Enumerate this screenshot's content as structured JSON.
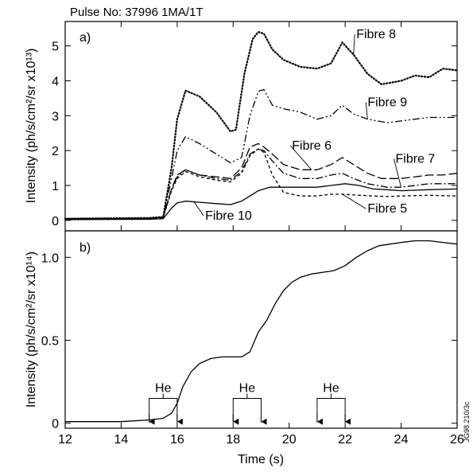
{
  "chart_data": [
    {
      "type": "line",
      "panel_label": "a)",
      "title": "Pulse No: 37996 1MA/1T",
      "ylabel": "Intensity (ph/s/cm²/sr x10¹³)",
      "xlabel": "",
      "xlim": [
        12,
        26
      ],
      "ylim": [
        -0.3,
        5.7
      ],
      "yticks": [
        "0",
        "1",
        "2",
        "3",
        "4",
        "5"
      ],
      "grid": false,
      "series": [
        {
          "name": "Fibre 8",
          "style": "dotted",
          "x": [
            12,
            15,
            15.5,
            15.8,
            16,
            16.3,
            16.8,
            17.4,
            17.9,
            18.1,
            18.4,
            18.7,
            18.9,
            19.1,
            19.4,
            19.8,
            20.4,
            21,
            21.5,
            21.9,
            22.3,
            22.8,
            23.3,
            24,
            24.5,
            25,
            25.5,
            26
          ],
          "y": [
            0.05,
            0.07,
            0.1,
            1.5,
            2.9,
            3.72,
            3.55,
            3.1,
            2.55,
            2.6,
            4.2,
            5.2,
            5.4,
            5.35,
            4.9,
            4.6,
            4.4,
            4.35,
            4.5,
            5.1,
            4.75,
            4.2,
            3.9,
            4.0,
            4.15,
            4.1,
            4.35,
            4.3
          ]
        },
        {
          "name": "Fibre 9",
          "style": "dash-dot-dot",
          "x": [
            12,
            15,
            15.5,
            15.8,
            16,
            16.3,
            16.8,
            17.4,
            17.9,
            18.3,
            18.6,
            18.9,
            19.1,
            19.4,
            19.8,
            20.4,
            21,
            21.5,
            21.9,
            22.3,
            22.8,
            23.5,
            24,
            24.5,
            25,
            25.5,
            26
          ],
          "y": [
            0.05,
            0.06,
            0.1,
            1.2,
            2.0,
            2.4,
            2.2,
            1.9,
            1.65,
            1.8,
            3.0,
            3.7,
            3.75,
            3.3,
            3.2,
            3.1,
            2.9,
            3.0,
            3.3,
            3.05,
            2.9,
            2.8,
            2.85,
            2.9,
            2.95,
            2.95,
            2.95
          ]
        },
        {
          "name": "Fibre 6",
          "style": "long-dash",
          "x": [
            12,
            15,
            15.5,
            15.8,
            16,
            16.3,
            16.8,
            17.4,
            17.9,
            18.3,
            18.6,
            18.9,
            19.1,
            19.4,
            19.8,
            20.4,
            21,
            21.5,
            21.9,
            22.3,
            22.8,
            23.3,
            24,
            24.5,
            25,
            25.5,
            26
          ],
          "y": [
            0.05,
            0.05,
            0.08,
            0.9,
            1.3,
            1.45,
            1.3,
            1.25,
            1.2,
            1.5,
            2.1,
            2.2,
            2.1,
            1.9,
            1.6,
            1.45,
            1.45,
            1.6,
            1.8,
            1.6,
            1.35,
            1.2,
            1.2,
            1.25,
            1.3,
            1.3,
            1.35
          ]
        },
        {
          "name": "Fibre 7",
          "style": "dash-dot",
          "x": [
            12,
            15,
            15.5,
            15.8,
            16,
            16.3,
            16.8,
            17.4,
            17.9,
            18.3,
            18.6,
            18.9,
            19.1,
            19.4,
            19.8,
            20.4,
            21,
            21.5,
            21.9,
            22.3,
            22.8,
            23.5,
            24,
            24.5,
            25,
            25.5,
            26
          ],
          "y": [
            0.05,
            0.05,
            0.08,
            0.9,
            1.25,
            1.45,
            1.3,
            1.2,
            1.15,
            1.4,
            1.9,
            2.05,
            2.0,
            1.7,
            1.35,
            1.2,
            1.2,
            1.3,
            1.35,
            1.2,
            1.05,
            0.95,
            0.95,
            1.0,
            1.05,
            1.05,
            1.05
          ]
        },
        {
          "name": "Fibre 5",
          "style": "short-dash",
          "x": [
            12,
            15,
            15.5,
            15.8,
            16,
            16.3,
            16.8,
            17.4,
            17.9,
            18.3,
            18.6,
            18.9,
            19.1,
            19.4,
            19.8,
            20.4,
            21,
            21.5,
            21.9,
            22.5,
            23,
            23.5,
            24,
            25,
            26
          ],
          "y": [
            0.05,
            0.05,
            0.08,
            0.85,
            1.2,
            1.4,
            1.25,
            1.15,
            1.1,
            1.35,
            1.85,
            2.05,
            1.95,
            1.3,
            0.8,
            0.7,
            0.7,
            0.75,
            0.75,
            0.72,
            0.7,
            0.68,
            0.7,
            0.72,
            0.7
          ]
        },
        {
          "name": "Fibre 10",
          "style": "solid",
          "x": [
            12,
            15,
            15.5,
            15.8,
            16,
            16.3,
            16.8,
            17.4,
            17.9,
            18.3,
            18.6,
            18.9,
            19.3,
            19.8,
            20.4,
            21,
            21.5,
            22,
            22.5,
            23,
            23.5,
            24,
            25,
            26
          ],
          "y": [
            0.02,
            0.03,
            0.05,
            0.35,
            0.5,
            0.55,
            0.52,
            0.48,
            0.45,
            0.55,
            0.7,
            0.85,
            0.95,
            0.95,
            0.95,
            0.95,
            1.0,
            1.05,
            1.0,
            0.9,
            0.88,
            0.85,
            0.88,
            0.9
          ]
        }
      ]
    },
    {
      "type": "line",
      "panel_label": "b)",
      "ylabel": "Intensity (ph/s/cm²/sr x10¹⁴)",
      "xlabel": "Time (s)",
      "xlim": [
        12,
        26
      ],
      "ylim": [
        -0.03,
        1.16
      ],
      "xticks": [
        "12",
        "14",
        "16",
        "18",
        "20",
        "22",
        "24",
        "26"
      ],
      "yticks": [
        "0",
        "0.5",
        "1.0"
      ],
      "grid": false,
      "series": [
        {
          "style": "solid",
          "x": [
            12,
            14,
            15,
            15.5,
            15.8,
            16,
            16.2,
            16.5,
            16.8,
            17.2,
            17.6,
            18,
            18.3,
            18.6,
            18.9,
            19.2,
            19.5,
            19.8,
            20.1,
            20.4,
            20.8,
            21.2,
            21.6,
            22,
            22.4,
            22.8,
            23.2,
            23.6,
            24,
            24.5,
            25,
            25.5,
            26
          ],
          "y": [
            0.01,
            0.01,
            0.02,
            0.03,
            0.06,
            0.12,
            0.22,
            0.31,
            0.36,
            0.39,
            0.4,
            0.4,
            0.4,
            0.43,
            0.55,
            0.62,
            0.72,
            0.8,
            0.85,
            0.88,
            0.9,
            0.91,
            0.92,
            0.95,
            1.0,
            1.04,
            1.07,
            1.08,
            1.09,
            1.1,
            1.1,
            1.09,
            1.08
          ]
        }
      ],
      "markers": [
        {
          "label": "He",
          "start": 15,
          "end": 16
        },
        {
          "label": "He",
          "start": 18,
          "end": 19
        },
        {
          "label": "He",
          "start": 21,
          "end": 22
        }
      ]
    }
  ],
  "side_note": "JG98.210/3c"
}
